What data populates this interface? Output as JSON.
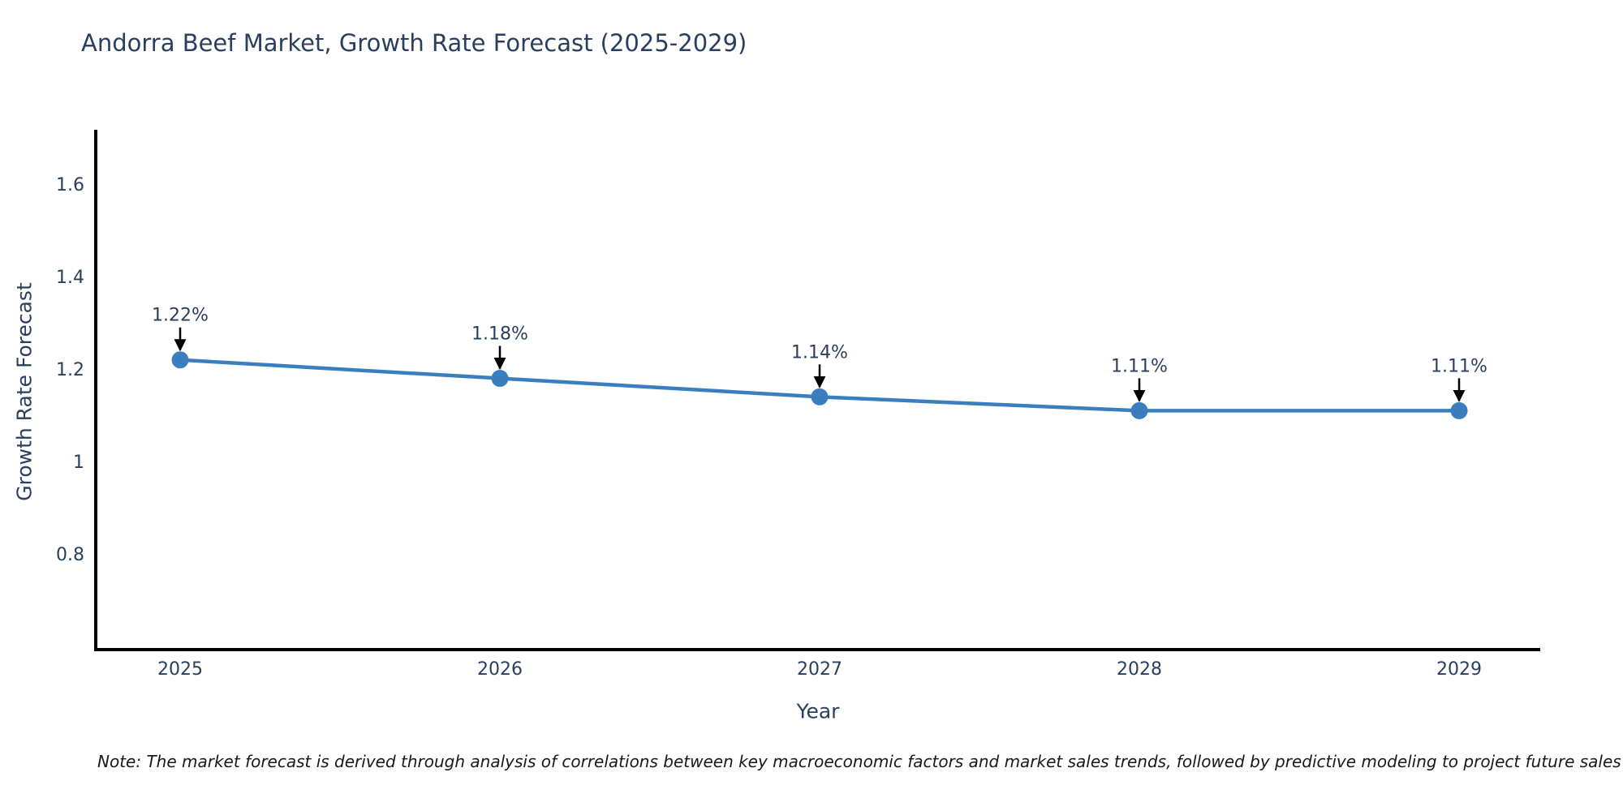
{
  "title": "Andorra Beef Market, Growth Rate Forecast (2025-2029)",
  "note": "Note: The market forecast is derived through analysis of correlations between key macroeconomic factors and market sales trends, followed by predictive modeling to project future sales",
  "chart_data": {
    "type": "line",
    "title": "Andorra Beef Market, Growth Rate Forecast (2025-2029)",
    "xlabel": "Year",
    "ylabel": "Growth Rate Forecast",
    "categories": [
      "2025",
      "2026",
      "2027",
      "2028",
      "2029"
    ],
    "series": [
      {
        "name": "Growth Rate Forecast",
        "values": [
          1.22,
          1.18,
          1.14,
          1.11,
          1.11
        ],
        "point_labels": [
          "1.22%",
          "1.18%",
          "1.14%",
          "1.11%",
          "1.11%"
        ]
      }
    ],
    "yticks": [
      "0.8",
      "1",
      "1.2",
      "1.4",
      "1.6"
    ],
    "ytick_values": [
      0.8,
      1.0,
      1.2,
      1.4,
      1.6
    ],
    "ylim": [
      0.593,
      1.718
    ],
    "grid": false,
    "legend_position": "none",
    "annotation_style": "down-arrow",
    "colors": {
      "line": "#3a7ebf",
      "marker": "#3a7ebf",
      "axis": "#000000",
      "tick_text": "#2a3f5f",
      "annotation_text": "#2a3f5f",
      "annotation_arrow": "#000000",
      "title_text": "#2a3f5f",
      "note_text": "#16191f"
    }
  }
}
